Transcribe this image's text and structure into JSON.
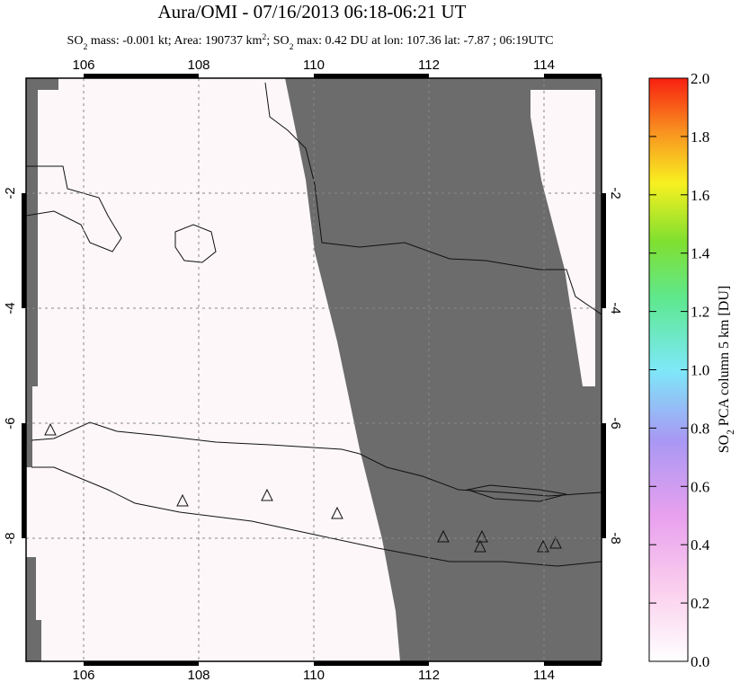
{
  "header": {
    "title": "Aura/OMI - 07/16/2013 06:18-06:21 UT",
    "subtitle": [
      "SO",
      "2",
      " mass: -0.001 kt; Area: 190737 km",
      "2",
      "; SO",
      "2",
      " max: 0.42 DU at lon: 107.36 lat: -7.87 ; 06:19UTC"
    ]
  },
  "map": {
    "xlim": [
      105,
      115
    ],
    "ylim": [
      -10.14,
      0
    ],
    "xticks": [
      106,
      108,
      110,
      112,
      114
    ],
    "yticks": [
      -2,
      -4,
      -6,
      -8
    ]
  },
  "colorbar": {
    "label": [
      "SO",
      "2",
      " PCA column 5 km [DU]"
    ],
    "lim": [
      0,
      2
    ],
    "ticks": [
      {
        "value": 0,
        "label": "0.0"
      },
      0.2,
      0.4,
      0.6,
      0.8,
      {
        "value": 1,
        "label": "1.0"
      },
      1.2,
      1.4,
      1.6,
      1.8,
      {
        "value": 2,
        "label": "2.0"
      }
    ]
  }
}
